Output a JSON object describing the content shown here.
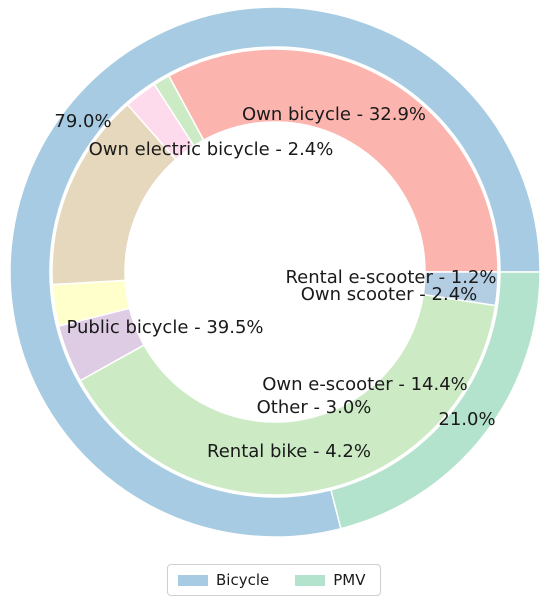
{
  "chart_data": {
    "type": "pie",
    "subtype": "nested-donut",
    "outer_ring": [
      {
        "name": "Bicycle",
        "value": 79.0,
        "label": "79.0%",
        "color": "#a6cbe2"
      },
      {
        "name": "PMV",
        "value": 21.0,
        "label": "21.0%",
        "color": "#b3e2cd"
      }
    ],
    "inner_ring": [
      {
        "name": "Own bicycle",
        "value": 32.9,
        "label": "Own bicycle - 32.9%",
        "color": "#fbb4ae",
        "group": "Bicycle"
      },
      {
        "name": "Rental e-scooter",
        "value": 1.2,
        "label": "Rental e-scooter - 1.2%",
        "color": "#ccebc5",
        "group": "PMV"
      },
      {
        "name": "Own scooter",
        "value": 2.4,
        "label": "Own scooter - 2.4%",
        "color": "#fddaec",
        "group": "PMV"
      },
      {
        "name": "Own e-scooter",
        "value": 14.4,
        "label": "Own e-scooter - 14.4%",
        "color": "#e5d8bd",
        "group": "PMV"
      },
      {
        "name": "Other",
        "value": 3.0,
        "label": "Other - 3.0%",
        "color": "#ffffcc",
        "group": "PMV"
      },
      {
        "name": "Rental bike",
        "value": 4.2,
        "label": "Rental bike - 4.2%",
        "color": "#decbe4",
        "group": "Bicycle"
      },
      {
        "name": "Public bicycle",
        "value": 39.5,
        "label": "Public bicycle - 39.5%",
        "color": "#ccebc5",
        "group": "Bicycle"
      },
      {
        "name": "Own electric bicycle",
        "value": 2.4,
        "label": "Own electric bicycle - 2.4%",
        "color": "#b3cde3",
        "group": "Bicycle"
      }
    ],
    "start_angle_deg": 0,
    "direction": "counterclockwise",
    "legend": {
      "position": "bottom-center",
      "entries": [
        {
          "name": "Bicycle",
          "color": "#a6cbe2"
        },
        {
          "name": "PMV",
          "color": "#b3e2cd"
        }
      ]
    }
  }
}
